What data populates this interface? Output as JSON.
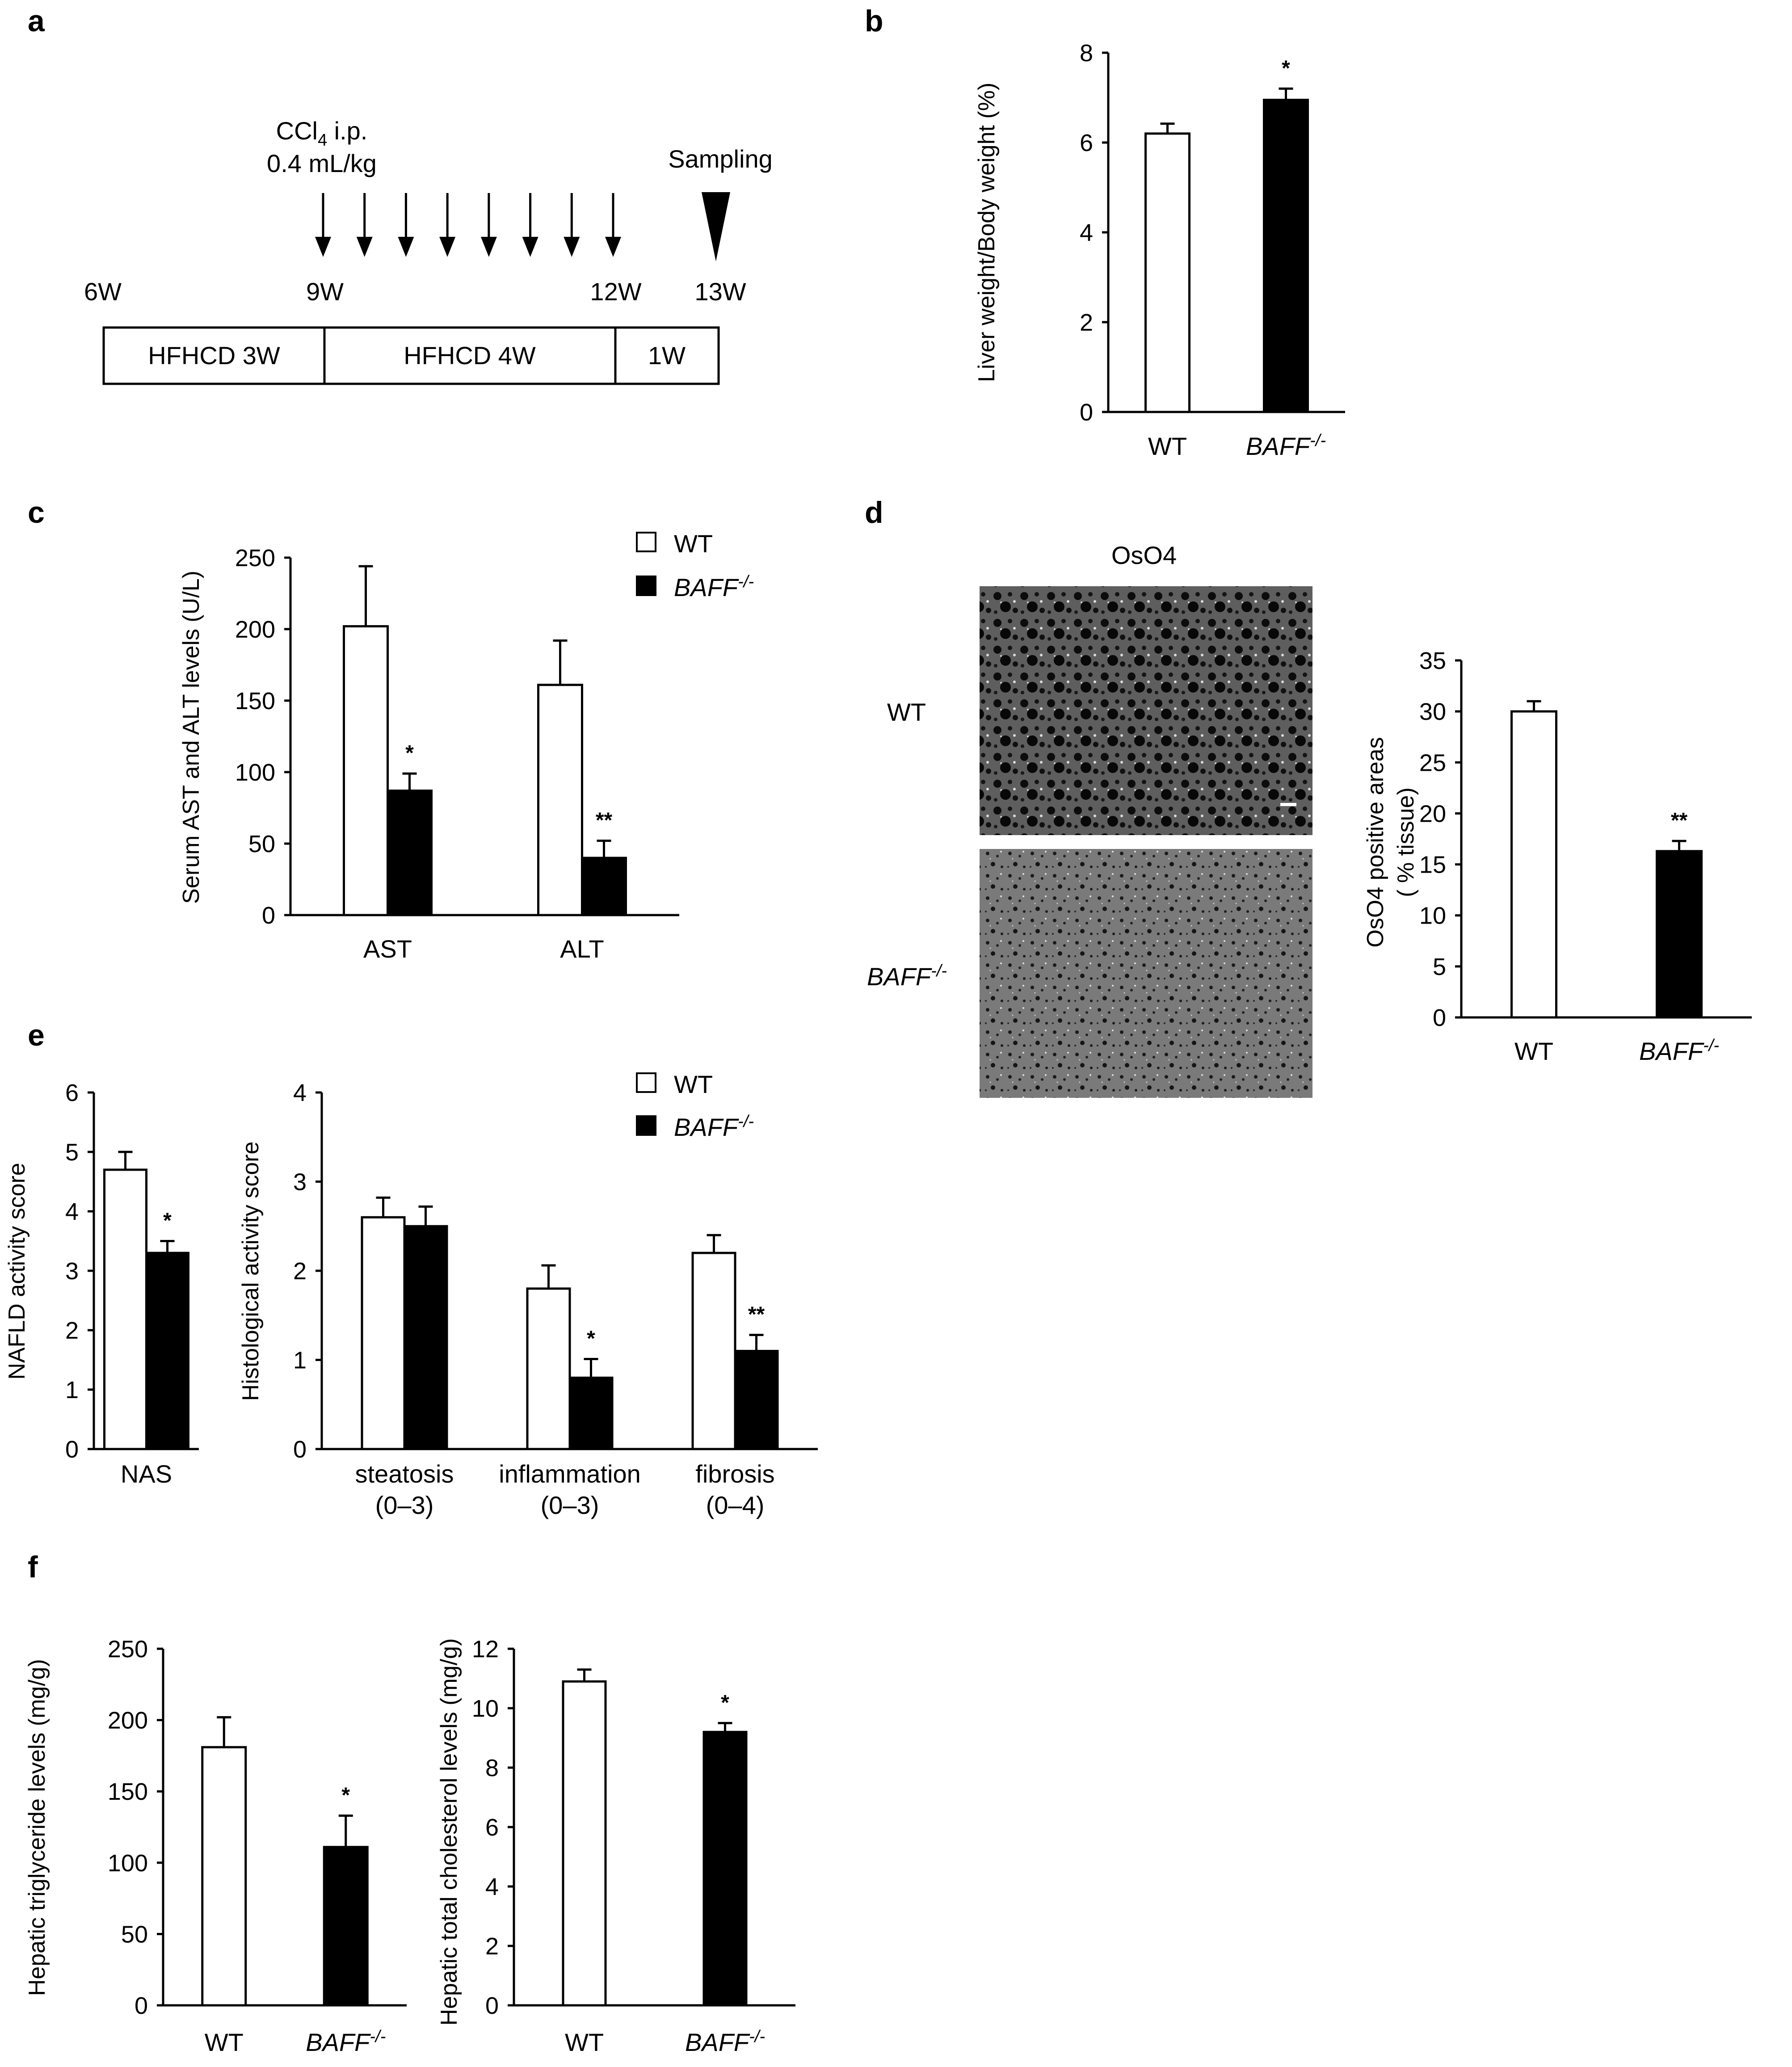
{
  "panels": {
    "a": {
      "letter": "a",
      "injection_line1": "CCl",
      "injection_sub": "4",
      "injection_line1_rest": " i.p.",
      "injection_line2": "0.4 mL/kg",
      "sampling_label": "Sampling",
      "arrow_count": 8,
      "week_labels": [
        "6W",
        "9W",
        "12W",
        "13W"
      ],
      "segments": [
        "HFHCD 3W",
        "HFHCD 4W",
        "1W"
      ]
    },
    "b": {
      "letter": "b"
    },
    "c": {
      "letter": "c"
    },
    "d": {
      "letter": "d",
      "image_title": "OsO4",
      "row_label_wt": "WT",
      "row_label_ko": "BAFF",
      "row_label_ko_sup": "-/-"
    },
    "e": {
      "letter": "e"
    },
    "f": {
      "letter": "f"
    }
  },
  "legend": {
    "wt": "WT",
    "ko": "BAFF",
    "ko_sup": "-/-"
  },
  "colors": {
    "wt_fill": "#ffffff",
    "ko_fill": "#000000",
    "axis": "#000000"
  },
  "chart_data": [
    {
      "id": "b",
      "type": "bar",
      "categories": [
        "WT",
        "BAFF-/-"
      ],
      "values": [
        6.2,
        6.95
      ],
      "errors": [
        0.22,
        0.25
      ],
      "significance": [
        "",
        "*"
      ],
      "ylabel": "Liver weight/Body weight (%)",
      "ylim": [
        0,
        8
      ],
      "yticks": [
        0,
        2,
        4,
        6,
        8
      ]
    },
    {
      "id": "c",
      "type": "bar",
      "categories": [
        "AST",
        "ALT"
      ],
      "series": [
        {
          "name": "WT",
          "values": [
            202,
            161
          ],
          "errors": [
            42,
            31
          ],
          "significance": [
            "",
            ""
          ]
        },
        {
          "name": "BAFF-/-",
          "values": [
            87,
            40
          ],
          "errors": [
            12,
            12
          ],
          "significance": [
            "*",
            "**"
          ]
        }
      ],
      "ylabel": "Serum AST and ALT levels (U/L)",
      "ylim": [
        0,
        250
      ],
      "yticks": [
        0,
        50,
        100,
        150,
        200,
        250
      ],
      "legend": "top-right"
    },
    {
      "id": "d",
      "type": "bar",
      "categories": [
        "WT",
        "BAFF-/-"
      ],
      "values": [
        30,
        16.3
      ],
      "errors": [
        1.0,
        1.0
      ],
      "significance": [
        "",
        "**"
      ],
      "ylabel_line1": "OsO4 positive areas",
      "ylabel_line2": "( % tissue)",
      "ylim": [
        0,
        35
      ],
      "yticks": [
        0,
        5,
        10,
        15,
        20,
        25,
        30,
        35
      ]
    },
    {
      "id": "e1",
      "type": "bar",
      "categories": [
        "NAS"
      ],
      "series": [
        {
          "name": "WT",
          "values": [
            4.7
          ],
          "errors": [
            0.3
          ],
          "significance": [
            ""
          ]
        },
        {
          "name": "BAFF-/-",
          "values": [
            3.3
          ],
          "errors": [
            0.2
          ],
          "significance": [
            "*"
          ]
        }
      ],
      "ylabel": "NAFLD activity score",
      "ylim": [
        0,
        6
      ],
      "yticks": [
        0,
        1,
        2,
        3,
        4,
        5,
        6
      ]
    },
    {
      "id": "e2",
      "type": "bar",
      "categories": [
        "steatosis",
        "inflammation",
        "fibrosis"
      ],
      "category_sublabels": [
        "(0–3)",
        "(0–3)",
        "(0–4)"
      ],
      "series": [
        {
          "name": "WT",
          "values": [
            2.6,
            1.8,
            2.2
          ],
          "errors": [
            0.22,
            0.26,
            0.2
          ],
          "significance": [
            "",
            "",
            ""
          ]
        },
        {
          "name": "BAFF-/-",
          "values": [
            2.5,
            0.8,
            1.1
          ],
          "errors": [
            0.22,
            0.21,
            0.18
          ],
          "significance": [
            "",
            "*",
            "**"
          ]
        }
      ],
      "ylabel": "Histological activity score",
      "ylim": [
        0,
        4
      ],
      "yticks": [
        0,
        1,
        2,
        3,
        4
      ],
      "legend": "top-right"
    },
    {
      "id": "f1",
      "type": "bar",
      "categories": [
        "WT",
        "BAFF-/-"
      ],
      "values": [
        181,
        111
      ],
      "errors": [
        21,
        22
      ],
      "significance": [
        "",
        "*"
      ],
      "ylabel": "Hepatic triglyceride levels (mg/g)",
      "ylim": [
        0,
        250
      ],
      "yticks": [
        0,
        50,
        100,
        150,
        200,
        250
      ]
    },
    {
      "id": "f2",
      "type": "bar",
      "categories": [
        "WT",
        "BAFF-/-"
      ],
      "values": [
        10.9,
        9.2
      ],
      "errors": [
        0.4,
        0.3
      ],
      "significance": [
        "",
        "*"
      ],
      "ylabel": "Hepatic total cholesterol levels (mg/g)",
      "ylim": [
        0,
        12
      ],
      "yticks": [
        0,
        2,
        4,
        6,
        8,
        10,
        12
      ]
    }
  ]
}
